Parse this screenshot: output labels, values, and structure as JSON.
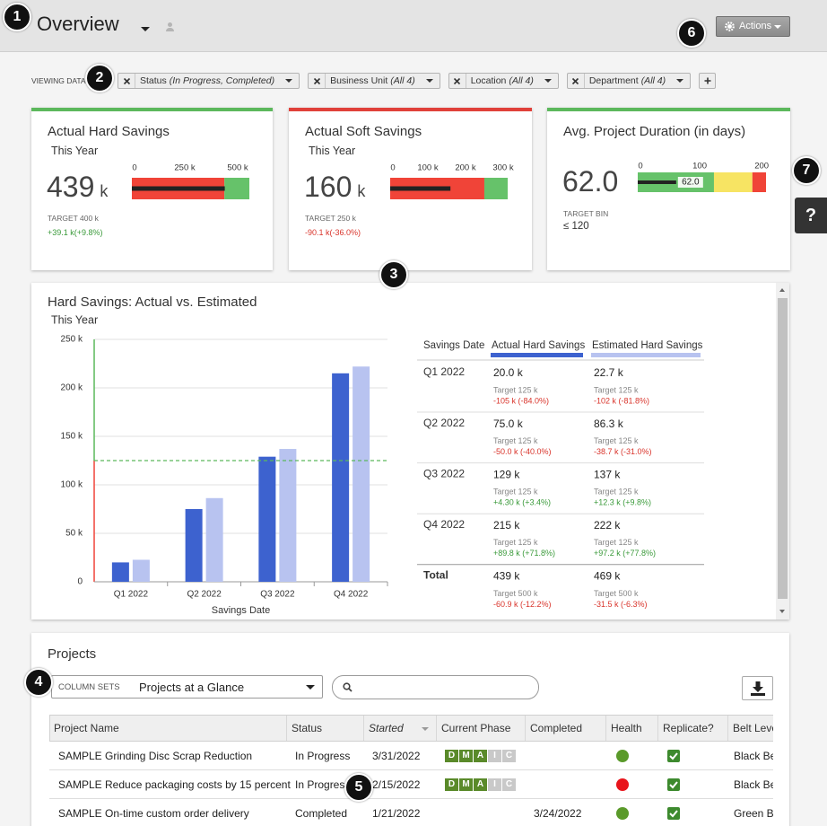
{
  "callouts": [
    "1",
    "2",
    "3",
    "4",
    "5",
    "6",
    "7"
  ],
  "header": {
    "title": "Overview",
    "actions": "Actions"
  },
  "filters": {
    "label": "VIEWING DATA",
    "chips": [
      {
        "name": "Status",
        "value": "(In Progress, Completed)"
      },
      {
        "name": "Business Unit",
        "value": "(All 4)"
      },
      {
        "name": "Location",
        "value": "(All 4)"
      },
      {
        "name": "Department",
        "value": "(All 4)"
      }
    ]
  },
  "kpis": [
    {
      "title": "Actual Hard Savings",
      "period": "This Year",
      "value": 439,
      "unit": "k",
      "target": "TARGET 400 k",
      "delta": "+39.1 k(+9.8%)",
      "accent": "#5cb85c",
      "chart_data": {
        "type": "bullet",
        "xlim": [
          0,
          555
        ],
        "xticks": [
          0,
          {
            "value": 250,
            "label": "250 k"
          },
          {
            "value": 500,
            "label": "500 k"
          }
        ],
        "bar_color": "#222222",
        "bands": [
          {
            "to": 437,
            "color": "#f04438"
          },
          {
            "to": 555,
            "color": "#66c26a"
          }
        ]
      }
    },
    {
      "title": "Actual Soft Savings",
      "period": "This Year",
      "value": 160,
      "unit": "k",
      "target": "TARGET 250 k",
      "delta": "-90.1 k(-36.0%)",
      "accent": "#e0413a",
      "chart_data": {
        "type": "bullet",
        "xlim": [
          0,
          312
        ],
        "xticks": [
          0,
          {
            "value": 100,
            "label": "100 k"
          },
          {
            "value": 200,
            "label": "200 k"
          },
          {
            "value": 300,
            "label": "300 k"
          }
        ],
        "bar_color": "#222222",
        "bands": [
          {
            "to": 250,
            "color": "#f04438"
          },
          {
            "to": 312,
            "color": "#66c26a"
          }
        ]
      }
    },
    {
      "title": "Avg. Project Duration (in days)",
      "value": 62,
      "value_label": "62.0",
      "target": "TARGET BIN",
      "bin": "≤ 120",
      "accent": "#5cb85c",
      "chart_data": {
        "type": "bullet",
        "xlim": [
          0,
          207
        ],
        "xticks": [
          0,
          100,
          200
        ],
        "bar_color": "#222222",
        "bands": [
          {
            "to": 123,
            "color": "#66c26a"
          },
          {
            "to": 185,
            "color": "#f7e463"
          },
          {
            "to": 207,
            "color": "#f04438"
          }
        ]
      }
    }
  ],
  "chart_data": {
    "type": "bar",
    "title": "Hard Savings: Actual vs. Estimated",
    "subtitle": "This Year",
    "x_label": "Savings Date",
    "categories": [
      "Q1 2022",
      "Q2 2022",
      "Q3 2022",
      "Q4 2022"
    ],
    "series": [
      {
        "name": "Actual Hard Savings",
        "color": "#3d62cf",
        "values": [
          20.0,
          75.0,
          129,
          215
        ]
      },
      {
        "name": "Estimated Hard Savings",
        "color": "#b8c3f0",
        "values": [
          22.7,
          86.3,
          137,
          222
        ]
      }
    ],
    "ylim": [
      0,
      250
    ],
    "yticks": [
      0,
      {
        "value": 50,
        "label": "50 k"
      },
      {
        "value": 100,
        "label": "100 k"
      },
      {
        "value": 150,
        "label": "150 k"
      },
      {
        "value": 200,
        "label": "200 k"
      },
      {
        "value": 250,
        "label": "250 k"
      }
    ],
    "grid": true,
    "target": 125,
    "below_target_color": "#f04438",
    "above_target_color": "#5cb85c"
  },
  "summary": {
    "headers": [
      "Savings Date",
      "Actual Hard Savings",
      "Estimated Hard Savings"
    ],
    "rows": [
      {
        "label": "Q1 2022",
        "cells": [
          {
            "value": "20.0 k",
            "target": "Target 125 k",
            "delta": "-105 k  (-84.0%)"
          },
          {
            "value": "22.7 k",
            "target": "Target 125 k",
            "delta": "-102 k  (-81.8%)"
          }
        ]
      },
      {
        "label": "Q2 2022",
        "cells": [
          {
            "value": "75.0 k",
            "target": "Target 125 k",
            "delta": "-50.0 k  (-40.0%)"
          },
          {
            "value": "86.3 k",
            "target": "Target 125 k",
            "delta": "-38.7 k  (-31.0%)"
          }
        ]
      },
      {
        "label": "Q3 2022",
        "cells": [
          {
            "value": "129 k",
            "target": "Target 125 k",
            "delta": "+4.30 k  (+3.4%)"
          },
          {
            "value": "137 k",
            "target": "Target 125 k",
            "delta": "+12.3 k  (+9.8%)"
          }
        ]
      },
      {
        "label": "Q4 2022",
        "cells": [
          {
            "value": "215 k",
            "target": "Target 125 k",
            "delta": "+89.8 k  (+71.8%)"
          },
          {
            "value": "222 k",
            "target": "Target 125 k",
            "delta": "+97.2 k  (+77.8%)"
          }
        ]
      },
      {
        "label": "Total",
        "cells": [
          {
            "value": "439 k",
            "target": "Target 500 k",
            "delta": "-60.9 k  (-12.2%)"
          },
          {
            "value": "469 k",
            "target": "Target 500 k",
            "delta": "-31.5 k  (-6.3%)"
          }
        ]
      }
    ]
  },
  "projects": {
    "title": "Projects",
    "column_sets_label": "COLUMN SETS",
    "column_set": "Projects at a Glance",
    "columns": [
      "Project Name",
      "Status",
      "Started",
      "Current Phase",
      "Completed",
      "Health",
      "Replicate?",
      "Belt Level"
    ],
    "phase_letters": [
      "D",
      "M",
      "A",
      "I",
      "C"
    ],
    "rows": [
      {
        "name": "SAMPLE Grinding Disc Scrap Reduction",
        "status": "In Progress",
        "started": "3/31/2022",
        "phase": "A",
        "completed": null,
        "health": "#5a9a2a",
        "replicate": true,
        "belt": "Black Belt"
      },
      {
        "name": "SAMPLE Reduce packaging costs by 15 percent",
        "status": "In Progress",
        "started": "2/15/2022",
        "phase": "A",
        "completed": null,
        "health": "#e8141b",
        "replicate": true,
        "belt": "Black Belt"
      },
      {
        "name": "SAMPLE On-time custom order delivery",
        "status": "Completed",
        "started": "1/21/2022",
        "phase": null,
        "completed": "3/24/2022",
        "health": "#5a9a2a",
        "replicate": true,
        "belt": "Green Belt"
      }
    ]
  },
  "help": "?"
}
